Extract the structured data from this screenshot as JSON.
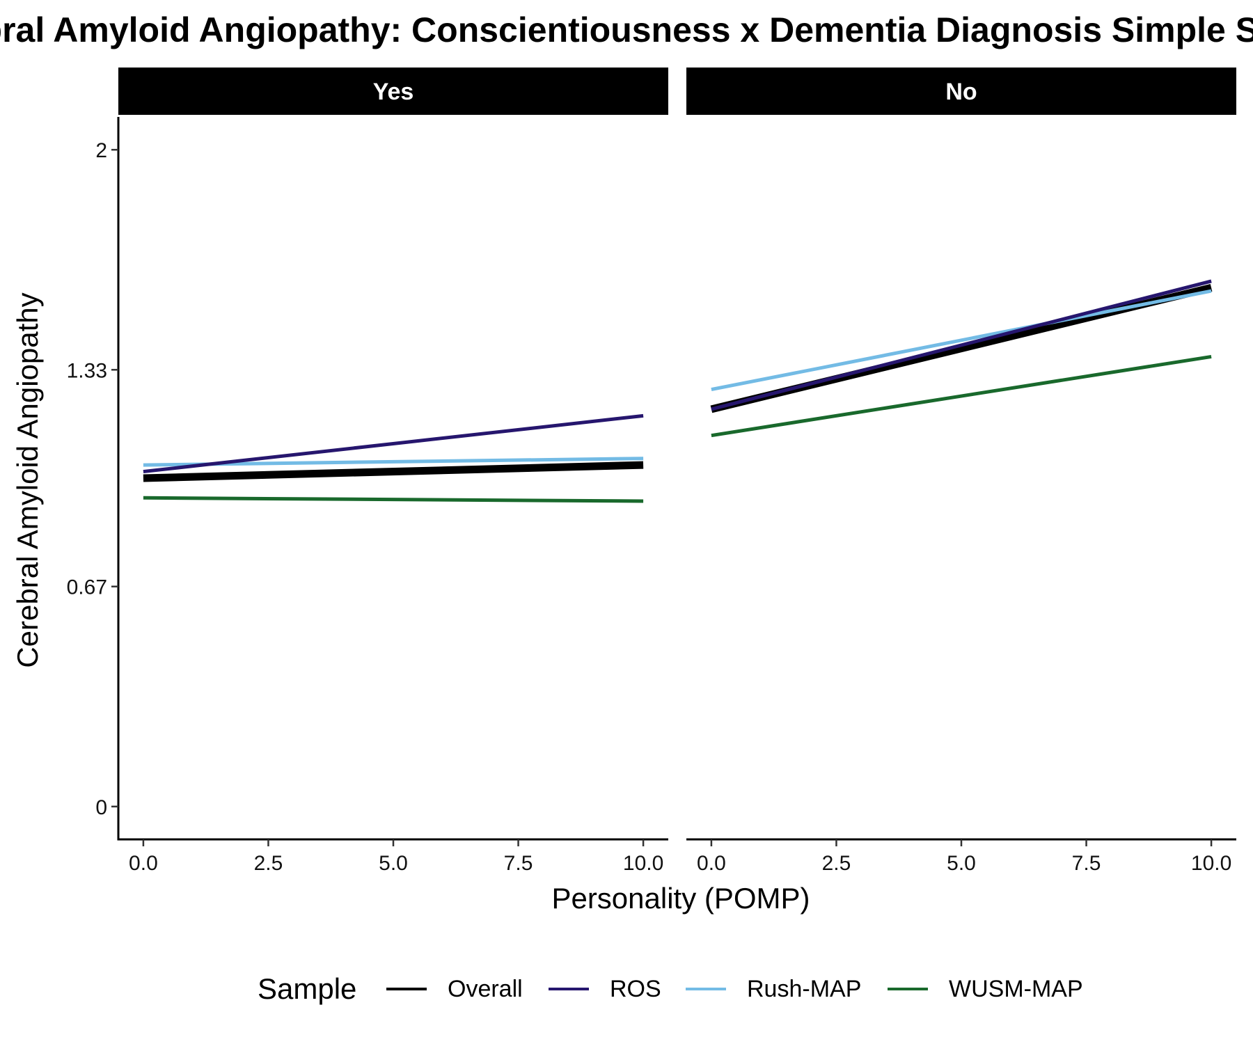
{
  "chart_data": {
    "type": "line",
    "title": "Cerebral Amyloid Angiopathy: Conscientiousness x Dementia Diagnosis Simple Slopes",
    "xlabel": "Personality (POMP)",
    "ylabel": "Cerebral Amyloid Angiopathy",
    "xlim": [
      -0.5,
      10.5
    ],
    "ylim": [
      -0.1,
      2.1
    ],
    "x_ticks": [
      0,
      2.5,
      5,
      7.5,
      10
    ],
    "x_tick_labels": [
      "0.0",
      "2.5",
      "5.0",
      "7.5",
      "10.0"
    ],
    "y_ticks": [
      0,
      0.67,
      1.33,
      2
    ],
    "y_tick_labels": [
      "0",
      "0.67",
      "1.33",
      "2"
    ],
    "grid": false,
    "legend": {
      "title": "Sample",
      "position": "bottom"
    },
    "facets": [
      {
        "label": "Yes",
        "series": [
          {
            "name": "Overall",
            "color": "#000000",
            "x": [
              0,
              10
            ],
            "y": [
              1.0,
              1.04
            ]
          },
          {
            "name": "ROS",
            "color": "#26166e",
            "x": [
              0,
              10
            ],
            "y": [
              1.02,
              1.19
            ]
          },
          {
            "name": "Rush-MAP",
            "color": "#73bbe5",
            "x": [
              0,
              10
            ],
            "y": [
              1.04,
              1.06
            ]
          },
          {
            "name": "WUSM-MAP",
            "color": "#19692c",
            "x": [
              0,
              10
            ],
            "y": [
              0.94,
              0.93
            ]
          }
        ]
      },
      {
        "label": "No",
        "series": [
          {
            "name": "Overall",
            "color": "#000000",
            "x": [
              0,
              10
            ],
            "y": [
              1.21,
              1.58
            ]
          },
          {
            "name": "ROS",
            "color": "#26166e",
            "x": [
              0,
              10
            ],
            "y": [
              1.21,
              1.6
            ]
          },
          {
            "name": "Rush-MAP",
            "color": "#73bbe5",
            "x": [
              0,
              10
            ],
            "y": [
              1.27,
              1.57
            ]
          },
          {
            "name": "WUSM-MAP",
            "color": "#19692c",
            "x": [
              0,
              10
            ],
            "y": [
              1.13,
              1.37
            ]
          }
        ]
      }
    ]
  }
}
